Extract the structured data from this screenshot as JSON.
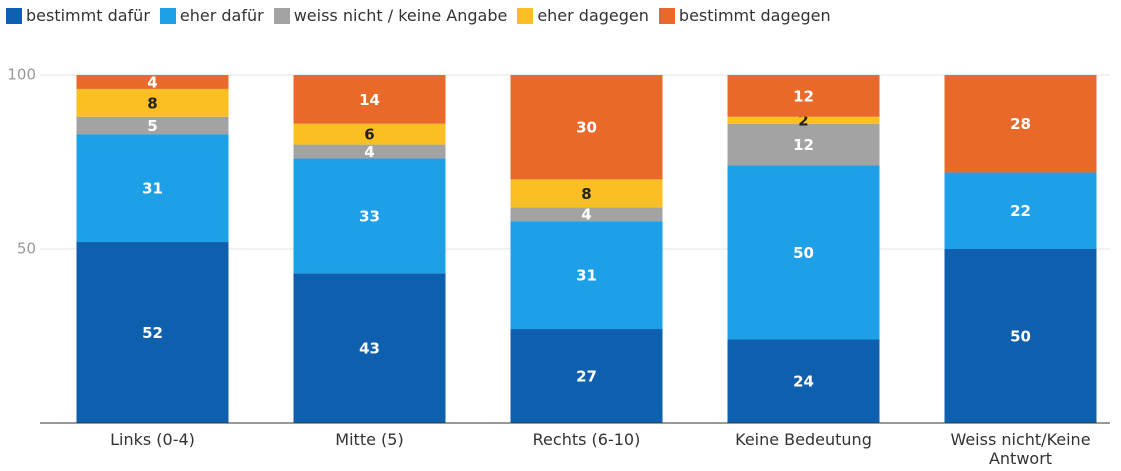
{
  "chart_data": {
    "type": "stacked_bar",
    "categories": [
      "Links (0-4)",
      "Mitte (5)",
      "Rechts (6-10)",
      "Keine Bedeutung",
      "Weiss nicht/Keine Antwort"
    ],
    "series": [
      {
        "name": "bestimmt dafür",
        "color": "#0e5fae",
        "label_color": "#ffffff",
        "values": [
          52,
          43,
          27,
          24,
          50
        ]
      },
      {
        "name": "eher dafür",
        "color": "#1ea0e8",
        "label_color": "#ffffff",
        "values": [
          31,
          33,
          31,
          50,
          22
        ]
      },
      {
        "name": "weiss nicht / keine Angabe",
        "color": "#a3a3a3",
        "label_color": "#ffffff",
        "values": [
          5,
          4,
          4,
          12,
          0
        ]
      },
      {
        "name": "eher dagegen",
        "color": "#fbbf24",
        "label_color": "#222222",
        "values": [
          8,
          6,
          8,
          2,
          0
        ]
      },
      {
        "name": "bestimmt dagegen",
        "color": "#e8692a",
        "label_color": "#ffffff",
        "values": [
          4,
          14,
          30,
          12,
          28
        ]
      }
    ],
    "ylim": [
      0,
      100
    ],
    "yticks": [
      50,
      100
    ],
    "grid": true
  }
}
